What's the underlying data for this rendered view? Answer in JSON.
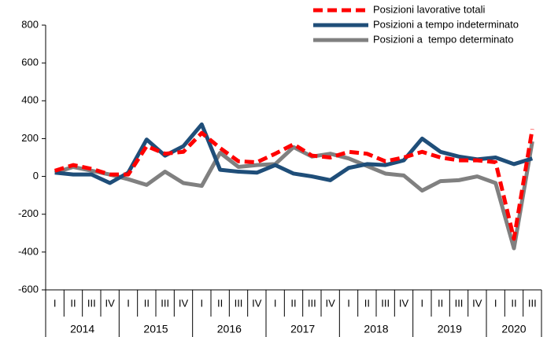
{
  "chart_data": {
    "type": "line",
    "categories": [
      "I",
      "II",
      "III",
      "IV",
      "I",
      "II",
      "III",
      "IV",
      "I",
      "II",
      "III",
      "IV",
      "I",
      "II",
      "III",
      "IV",
      "I",
      "II",
      "III",
      "IV",
      "I",
      "II",
      "III",
      "IV",
      "I",
      "II",
      "III"
    ],
    "years": [
      "2014",
      "2015",
      "2016",
      "2017",
      "2018",
      "2019",
      "2020"
    ],
    "series": [
      {
        "name": "Posizioni lavorative totali",
        "color": "#ff0000",
        "dashed": true,
        "values": [
          30,
          60,
          40,
          10,
          10,
          160,
          120,
          130,
          230,
          150,
          80,
          75,
          120,
          170,
          110,
          100,
          130,
          120,
          80,
          100,
          130,
          100,
          85,
          85,
          75,
          -330,
          250
        ]
      },
      {
        "name": "Posizioni a tempo indeterminato",
        "color": "#1f4e79",
        "dashed": false,
        "values": [
          20,
          10,
          10,
          -35,
          20,
          195,
          110,
          160,
          275,
          35,
          25,
          20,
          60,
          15,
          0,
          -20,
          45,
          65,
          60,
          85,
          200,
          130,
          105,
          90,
          100,
          65,
          95
        ]
      },
      {
        "name": "Posizioni a  tempo determinato",
        "color": "#808080",
        "dashed": false,
        "values": [
          20,
          50,
          30,
          10,
          -15,
          -45,
          25,
          -35,
          -50,
          125,
          50,
          60,
          65,
          155,
          105,
          120,
          95,
          55,
          15,
          5,
          -75,
          -25,
          -20,
          0,
          -35,
          -380,
          185
        ]
      }
    ],
    "ylim": [
      -600,
      800
    ],
    "yticks": [
      -600,
      -400,
      -200,
      0,
      200,
      400,
      600,
      800
    ],
    "legend": "top-right"
  }
}
